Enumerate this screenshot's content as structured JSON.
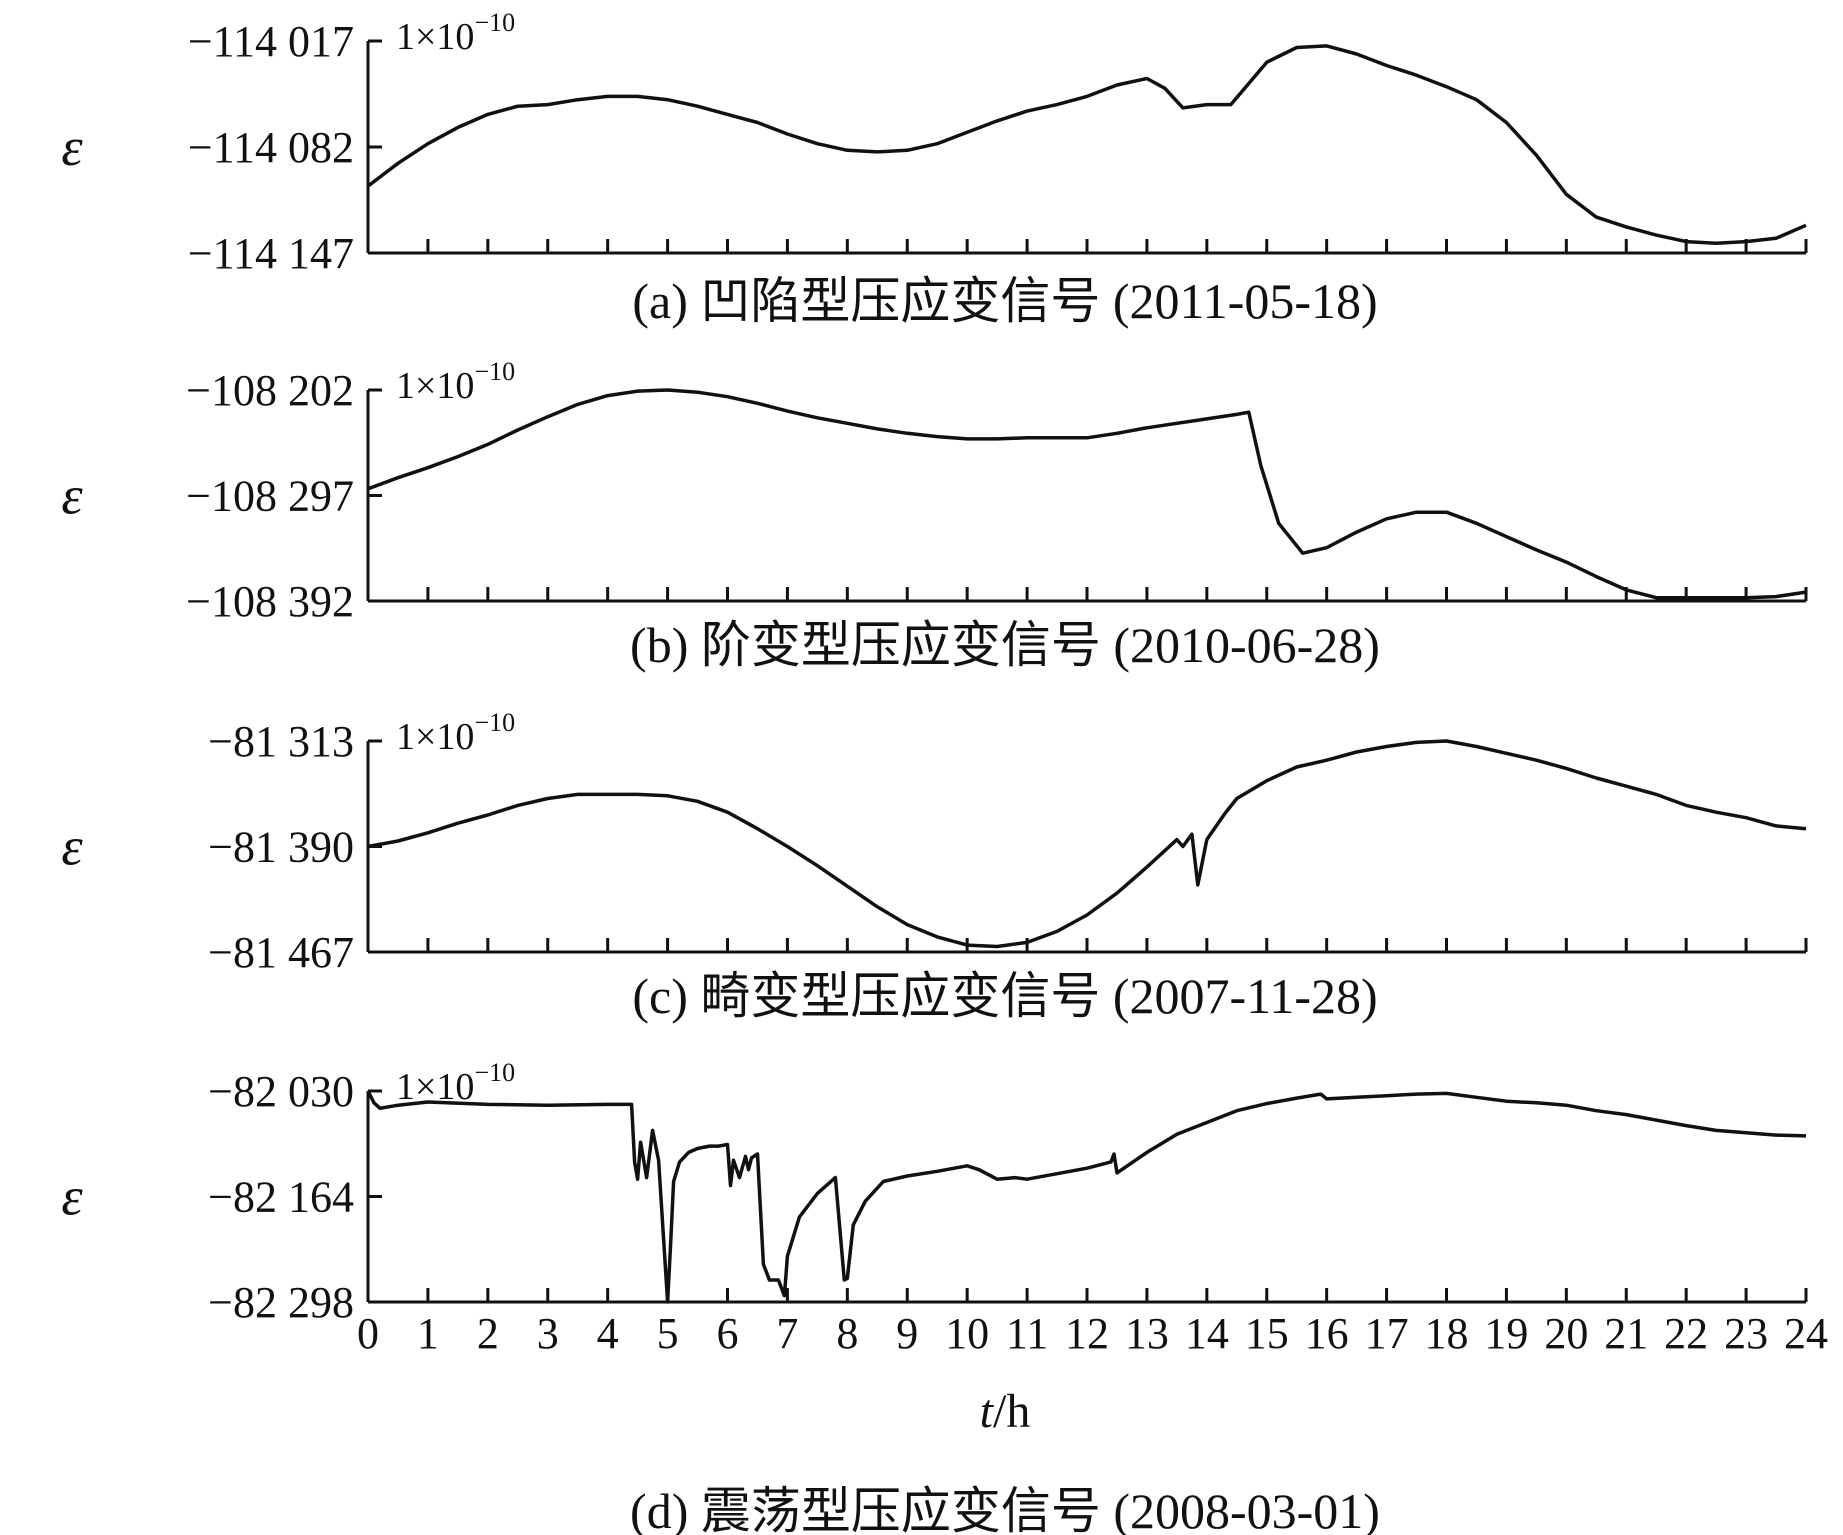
{
  "x_axis": {
    "ticks": [
      "0",
      "1",
      "2",
      "3",
      "4",
      "5",
      "6",
      "7",
      "8",
      "9",
      "10",
      "11",
      "12",
      "13",
      "14",
      "15",
      "16",
      "17",
      "18",
      "19",
      "20",
      "21",
      "22",
      "23",
      "24"
    ],
    "label_var": "t",
    "label_unit": "/h",
    "range": [
      0,
      24
    ]
  },
  "chart_data": [
    {
      "type": "line",
      "caption": "(a) 凹陷型压应变信号 (2011-05-18)",
      "ylabel": "ε",
      "unit_base": "1×10",
      "unit_exp": "−10",
      "ytick_labels": [
        "−114 017",
        "−114 082",
        "−114 147"
      ],
      "ylim": [
        -114147,
        -114017
      ],
      "x": [
        0,
        0.5,
        1,
        1.5,
        2,
        2.5,
        3,
        3.5,
        4,
        4.5,
        5,
        5.5,
        6,
        6.5,
        7,
        7.5,
        8,
        8.5,
        9,
        9.5,
        10,
        10.5,
        11,
        11.5,
        12,
        12.5,
        13,
        13.3,
        13.6,
        14,
        14.4,
        15,
        15.5,
        16,
        16.5,
        17,
        17.5,
        18,
        18.5,
        19,
        19.5,
        20,
        20.5,
        21,
        21.5,
        22,
        22.5,
        23,
        23.5,
        24
      ],
      "y": [
        -114106,
        -114092,
        -114080,
        -114070,
        -114062,
        -114057,
        -114056,
        -114053,
        -114051,
        -114051,
        -114053,
        -114057,
        -114062,
        -114067,
        -114074,
        -114080,
        -114084,
        -114085,
        -114084,
        -114080,
        -114073,
        -114066,
        -114060,
        -114056,
        -114051,
        -114044,
        -114040,
        -114046,
        -114058,
        -114056,
        -114056,
        -114030,
        -114021,
        -114020,
        -114025,
        -114032,
        -114038,
        -114045,
        -114053,
        -114067,
        -114087,
        -114111,
        -114125,
        -114131,
        -114136,
        -114140,
        -114141,
        -114140,
        -114138,
        -114130
      ]
    },
    {
      "type": "line",
      "caption": "(b) 阶变型压应变信号 (2010-06-28)",
      "ylabel": "ε",
      "unit_base": "1×10",
      "unit_exp": "−10",
      "ytick_labels": [
        "−108 202",
        "−108 297",
        "−108 392"
      ],
      "ylim": [
        -108392,
        -108202
      ],
      "x": [
        0,
        0.5,
        1,
        1.5,
        2,
        2.5,
        3,
        3.5,
        4,
        4.5,
        5,
        5.5,
        6,
        6.5,
        7,
        7.5,
        8,
        8.5,
        9,
        9.5,
        10,
        10.5,
        11,
        11.5,
        12,
        12.5,
        13,
        13.5,
        14,
        14.5,
        14.7,
        14.9,
        15.2,
        15.6,
        16,
        16.5,
        17,
        17.5,
        18,
        18.5,
        19,
        19.5,
        20,
        20.5,
        21,
        21.5,
        22,
        22.5,
        23,
        23.5,
        24
      ],
      "y": [
        -108291,
        -108281,
        -108272,
        -108262,
        -108251,
        -108238,
        -108226,
        -108215,
        -108207,
        -108203,
        -108202,
        -108204,
        -108208,
        -108214,
        -108221,
        -108227,
        -108232,
        -108237,
        -108241,
        -108244,
        -108246,
        -108246,
        -108245,
        -108245,
        -108245,
        -108241,
        -108236,
        -108232,
        -108228,
        -108224,
        -108222,
        -108270,
        -108322,
        -108349,
        -108344,
        -108330,
        -108318,
        -108312,
        -108312,
        -108322,
        -108334,
        -108346,
        -108357,
        -108370,
        -108382,
        -108389,
        -108389,
        -108389,
        -108389,
        -108388,
        -108384
      ]
    },
    {
      "type": "line",
      "caption": "(c) 畸变型压应变信号 (2007-11-28)",
      "ylabel": "ε",
      "unit_base": "1×10",
      "unit_exp": "−10",
      "ytick_labels": [
        "−81 313",
        "−81 390",
        "−81 467"
      ],
      "ylim": [
        -81467,
        -81313
      ],
      "x": [
        0,
        0.5,
        1,
        1.5,
        2,
        2.5,
        3,
        3.5,
        4,
        4.5,
        5,
        5.5,
        6,
        6.5,
        7,
        7.5,
        8,
        8.5,
        9,
        9.5,
        10,
        10.5,
        11,
        11.5,
        12,
        12.5,
        13,
        13.5,
        13.6,
        13.75,
        13.85,
        14,
        14.3,
        14.5,
        15,
        15.5,
        16,
        16.5,
        17,
        17.5,
        18,
        18.5,
        19,
        19.5,
        20,
        20.5,
        21,
        21.5,
        22,
        22.5,
        23,
        23.5,
        24
      ],
      "y": [
        -81390,
        -81386,
        -81380,
        -81373,
        -81367,
        -81360,
        -81355,
        -81352,
        -81352,
        -81352,
        -81353,
        -81357,
        -81365,
        -81377,
        -81390,
        -81404,
        -81419,
        -81434,
        -81447,
        -81456,
        -81462,
        -81463,
        -81460,
        -81452,
        -81440,
        -81424,
        -81405,
        -81385,
        -81390,
        -81381,
        -81418,
        -81385,
        -81366,
        -81355,
        -81342,
        -81332,
        -81327,
        -81321,
        -81317,
        -81314,
        -81313,
        -81317,
        -81322,
        -81327,
        -81333,
        -81340,
        -81346,
        -81352,
        -81360,
        -81365,
        -81369,
        -81375,
        -81377
      ]
    },
    {
      "type": "line",
      "caption": "(d) 震荡型压应变信号 (2008-03-01)",
      "ylabel": "ε",
      "unit_base": "1×10",
      "unit_exp": "−10",
      "ytick_labels": [
        "−82 030",
        "−82 164",
        "−82 298"
      ],
      "ylim": [
        -82298,
        -82030
      ],
      "x": [
        0,
        0.1,
        0.2,
        0.5,
        1,
        2,
        3,
        4,
        4.4,
        4.45,
        4.5,
        4.55,
        4.65,
        4.75,
        4.85,
        5.0,
        5.05,
        5.1,
        5.2,
        5.35,
        5.5,
        5.7,
        5.85,
        6.0,
        6.05,
        6.1,
        6.2,
        6.3,
        6.35,
        6.4,
        6.5,
        6.6,
        6.7,
        6.85,
        6.95,
        7.0,
        7.2,
        7.5,
        7.8,
        7.95,
        8.0,
        8.1,
        8.3,
        8.6,
        9,
        9.5,
        10,
        10.2,
        10.5,
        10.8,
        11,
        11.5,
        12,
        12.4,
        12.45,
        12.5,
        13,
        13.5,
        14,
        14.5,
        15,
        15.5,
        15.9,
        16,
        16.5,
        17,
        17.5,
        18,
        18.5,
        19,
        19.5,
        20,
        20.5,
        21,
        21.5,
        22,
        22.5,
        23,
        23.5,
        24
      ],
      "y": [
        -82030,
        -82045,
        -82052,
        -82048,
        -82044,
        -82047,
        -82048,
        -82047,
        -82047,
        -82120,
        -82142,
        -82095,
        -82140,
        -82080,
        -82118,
        -82298,
        -82225,
        -82145,
        -82120,
        -82108,
        -82103,
        -82100,
        -82100,
        -82098,
        -82150,
        -82118,
        -82140,
        -82113,
        -82130,
        -82115,
        -82110,
        -82250,
        -82270,
        -82270,
        -82290,
        -82240,
        -82190,
        -82160,
        -82140,
        -82270,
        -82268,
        -82200,
        -82170,
        -82145,
        -82138,
        -82132,
        -82125,
        -82130,
        -82142,
        -82140,
        -82142,
        -82135,
        -82128,
        -82120,
        -82110,
        -82134,
        -82108,
        -82085,
        -82070,
        -82055,
        -82046,
        -82039,
        -82034,
        -82040,
        -82038,
        -82036,
        -82034,
        -82033,
        -82038,
        -82043,
        -82045,
        -82048,
        -82055,
        -82060,
        -82067,
        -82074,
        -82080,
        -82083,
        -82086,
        -82087
      ]
    }
  ]
}
